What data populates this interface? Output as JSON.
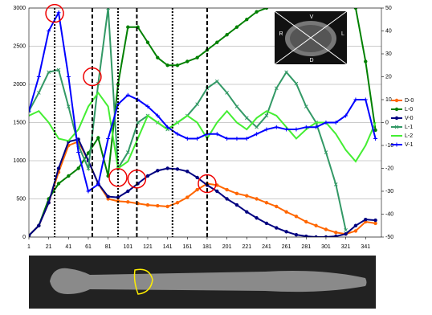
{
  "chart_data": {
    "type": "line",
    "x": [
      1,
      11,
      21,
      31,
      41,
      51,
      61,
      71,
      81,
      91,
      101,
      111,
      121,
      131,
      141,
      151,
      161,
      171,
      181,
      191,
      201,
      211,
      221,
      231,
      241,
      251,
      261,
      271,
      281,
      291,
      301,
      311,
      321,
      331,
      341,
      351
    ],
    "xlim": [
      1,
      357
    ],
    "xticks": [
      1,
      21,
      41,
      61,
      81,
      101,
      121,
      141,
      161,
      181,
      201,
      221,
      241,
      261,
      281,
      301,
      321,
      341
    ],
    "ylim": [
      0,
      3000
    ],
    "yticks": [
      0,
      500,
      1000,
      1500,
      2000,
      2500,
      3000
    ],
    "y2lim": [
      -50,
      50
    ],
    "y2ticks": [
      -50,
      -40,
      -30,
      -20,
      -10,
      0,
      10,
      20,
      30,
      40,
      50
    ],
    "grid": true,
    "legend": "right",
    "series": [
      {
        "name": "D-0",
        "color": "#ff6600",
        "marker": "circle",
        "values": [
          20,
          150,
          450,
          850,
          1200,
          1250,
          1000,
          700,
          500,
          470,
          460,
          440,
          420,
          410,
          400,
          450,
          520,
          620,
          700,
          680,
          620,
          570,
          540,
          500,
          450,
          400,
          330,
          270,
          200,
          150,
          100,
          60,
          40,
          80,
          200,
          180
        ]
      },
      {
        "name": "L-0",
        "color": "#008000",
        "marker": "circle",
        "values": [
          20,
          150,
          500,
          700,
          800,
          900,
          1100,
          1300,
          800,
          2000,
          2750,
          2750,
          2550,
          2350,
          2250,
          2250,
          2300,
          2350,
          2450,
          2550,
          2650,
          2750,
          2850,
          2950,
          3000,
          null,
          null,
          null,
          null,
          null,
          null,
          null,
          null,
          3000,
          2300,
          1400
        ]
      },
      {
        "name": "V-0",
        "color": "#000080",
        "marker": "circle",
        "values": [
          20,
          150,
          450,
          900,
          1250,
          1280,
          1000,
          700,
          530,
          520,
          600,
          700,
          800,
          870,
          900,
          890,
          860,
          780,
          680,
          600,
          500,
          420,
          330,
          250,
          180,
          120,
          70,
          30,
          10,
          0,
          0,
          10,
          40,
          150,
          230,
          220
        ]
      },
      {
        "name": "L-1",
        "color": "#339966",
        "marker": "cross",
        "axis": "y2",
        "values": [
          5,
          13,
          22,
          23,
          7,
          -10,
          -20,
          17,
          50,
          -20,
          -13,
          0,
          3,
          0,
          -3,
          0,
          3,
          8,
          15,
          18,
          13,
          7,
          2,
          -2,
          3,
          15,
          22,
          17,
          7,
          0,
          -13,
          -27,
          -47,
          null,
          null,
          null
        ]
      },
      {
        "name": "L-2",
        "color": "#44ee33",
        "marker": "none",
        "axis": "y2",
        "values": [
          3,
          5,
          0,
          -7,
          -8,
          -3,
          7,
          13,
          7,
          -20,
          -17,
          -7,
          3,
          0,
          -3,
          0,
          3,
          0,
          -7,
          0,
          5,
          0,
          -3,
          2,
          5,
          3,
          -2,
          -7,
          -3,
          0,
          0,
          -5,
          -12,
          -17,
          -10,
          0
        ]
      },
      {
        "name": "V-1",
        "color": "#0000ff",
        "marker": "plus",
        "axis": "y2",
        "values": [
          5,
          20,
          40,
          48,
          20,
          -13,
          -30,
          -27,
          -7,
          8,
          12,
          10,
          7,
          3,
          -2,
          -5,
          -7,
          -7,
          -5,
          -5,
          -7,
          -7,
          -7,
          -5,
          -3,
          -2,
          -3,
          -3,
          -2,
          -2,
          0,
          0,
          3,
          10,
          10,
          -7
        ]
      }
    ],
    "vlines": [
      27,
      65,
      91,
      110,
      146,
      181
    ],
    "highlights": [
      [
        27,
        2930
      ],
      [
        65,
        2100
      ],
      [
        91,
        780
      ],
      [
        110,
        760
      ],
      [
        181,
        700
      ]
    ]
  },
  "inset": {
    "labels": [
      "V",
      "R",
      "L",
      "D"
    ]
  }
}
